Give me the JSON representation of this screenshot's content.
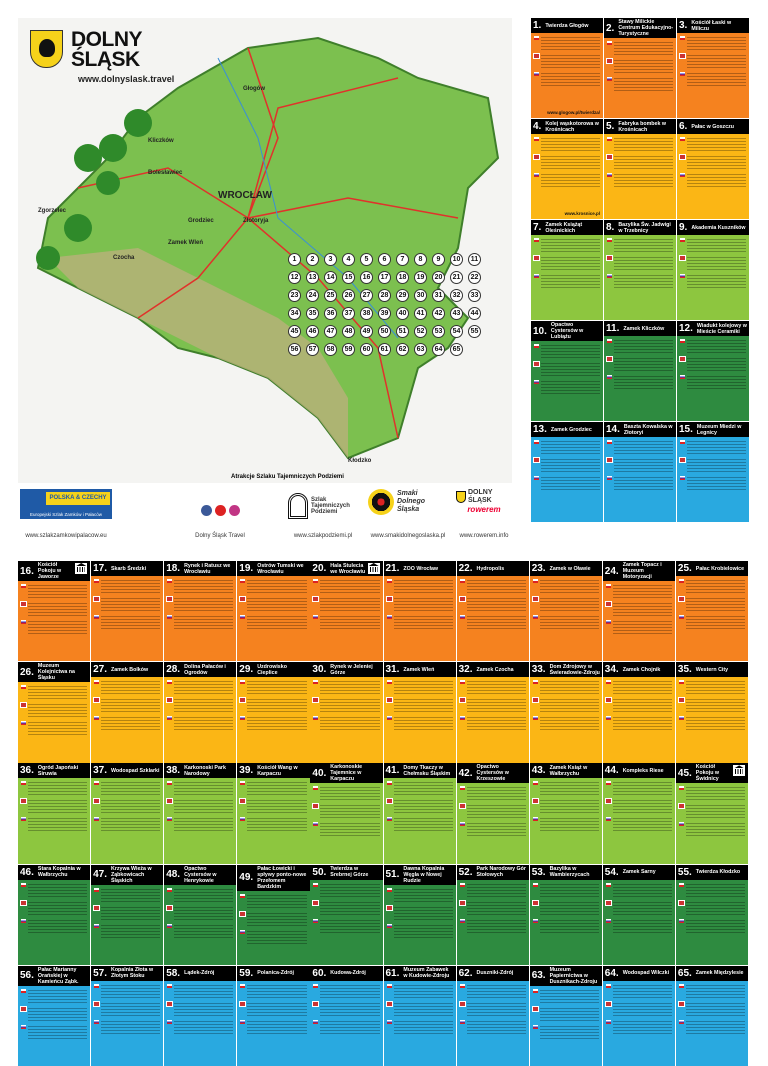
{
  "brand": {
    "title": "DOLNY ŚLĄSK",
    "url": "www.dolnyslask.travel"
  },
  "map": {
    "cities": [
      "Głogów",
      "Kliczków",
      "Bolesławiec",
      "Grodziec",
      "Złotoryja",
      "Zgorzelec",
      "Czocha",
      "Zamek Wleń",
      "WROCŁAW",
      "Kłodzko"
    ],
    "markers": [
      "1",
      "2",
      "3",
      "4",
      "5",
      "6",
      "7",
      "8",
      "9",
      "10",
      "11",
      "12",
      "13",
      "14",
      "15",
      "16",
      "17",
      "18",
      "19",
      "20",
      "21",
      "22",
      "23",
      "24",
      "25",
      "26",
      "27",
      "28",
      "29",
      "30",
      "31",
      "32",
      "33",
      "34",
      "35",
      "36",
      "37",
      "38",
      "39",
      "40",
      "41",
      "42",
      "43",
      "44",
      "45",
      "46",
      "47",
      "48",
      "49",
      "50",
      "51",
      "52",
      "53",
      "54",
      "55",
      "56",
      "57",
      "58",
      "59",
      "60",
      "61",
      "62",
      "63",
      "64",
      "65"
    ],
    "legend_title": "Atrakcje Szlaku Tajemniczych Podziemi",
    "colors": {
      "land": "#7cc04f",
      "mountains": "#b9b07a",
      "roads": "#e0322b",
      "rivers": "#3a8fd6"
    }
  },
  "footer": {
    "castles": {
      "label": "POLSKA & CZECHY",
      "sub": "Europejski Szlak Zamków i Pałaców",
      "url": "www.szlakzamkowipalacow.eu"
    },
    "social": {
      "label": "Dolny Śląsk Travel",
      "icons": [
        "facebook-icon",
        "youtube-icon",
        "instagram-icon"
      ]
    },
    "underground": {
      "label": "Szlak Tajemniczych Podziemi",
      "url": "www.szlakpodziemi.pl"
    },
    "taste": {
      "label": "Smaki Dolnego Śląska",
      "url": "www.smakidolnegoslaska.pl"
    },
    "bike": {
      "label": "DOLNY ŚLĄSK",
      "sub": "rowerem",
      "url": "www.rowerem.info"
    }
  },
  "row_colors": [
    "#f5821f",
    "#fbb615",
    "#8dc63f",
    "#2e8b40",
    "#29a9e0"
  ],
  "top_attractions": [
    {
      "num": "1.",
      "title": "Twierdza Głogów",
      "url": "www.glogow.pl/twierdza/"
    },
    {
      "num": "2.",
      "title": "Stawy Milickie Centrum Edukacyjno-Turystyczne"
    },
    {
      "num": "3.",
      "title": "Kościół Łaski w Miliczu"
    },
    {
      "num": "4.",
      "title": "Kolej wąskotorowa w Krośnicach",
      "url": "www.krosnice.pl"
    },
    {
      "num": "5.",
      "title": "Fabryka bombek w Krośnicach"
    },
    {
      "num": "6.",
      "title": "Pałac w Goszczu"
    },
    {
      "num": "7.",
      "title": "Zamek Książąt Oleśnickich"
    },
    {
      "num": "8.",
      "title": "Bazylika Św. Jadwigi w Trzebnicy"
    },
    {
      "num": "9.",
      "title": "Akademia Kuszników"
    },
    {
      "num": "10.",
      "title": "Opactwo Cystersów w Lubiążu"
    },
    {
      "num": "11.",
      "title": "Zamek Kliczków"
    },
    {
      "num": "12.",
      "title": "Wiadukt kolejowy w Mieście Ceramiki"
    },
    {
      "num": "13.",
      "title": "Zamek Grodziec"
    },
    {
      "num": "14.",
      "title": "Baszta Kowalska w Złotoryi"
    },
    {
      "num": "15.",
      "title": "Muzeum Miedzi w Legnicy"
    }
  ],
  "bottom_attractions": [
    {
      "num": "16.",
      "title": "Kościół Pokoju w Jaworze",
      "icon": true
    },
    {
      "num": "17.",
      "title": "Skarb Średzki"
    },
    {
      "num": "18.",
      "title": "Rynek i Ratusz we Wrocławiu"
    },
    {
      "num": "19.",
      "title": "Ostrów Tumski we Wrocławiu"
    },
    {
      "num": "20.",
      "title": "Hala Stulecia we Wrocławiu",
      "icon": true
    },
    {
      "num": "21.",
      "title": "ZOO Wrocław"
    },
    {
      "num": "22.",
      "title": "Hydropolis"
    },
    {
      "num": "23.",
      "title": "Zamek w Oławie"
    },
    {
      "num": "24.",
      "title": "Zamek Topacz i Muzeum Motoryzacji"
    },
    {
      "num": "25.",
      "title": "Pałac Krobielowice"
    },
    {
      "num": "26.",
      "title": "Muzeum Kolejnictwa na Śląsku"
    },
    {
      "num": "27.",
      "title": "Zamek Bolków"
    },
    {
      "num": "28.",
      "title": "Dolina Pałaców i Ogrodów"
    },
    {
      "num": "29.",
      "title": "Uzdrowisko Cieplice"
    },
    {
      "num": "30.",
      "title": "Rynek w Jeleniej Górze"
    },
    {
      "num": "31.",
      "title": "Zamek Wleń"
    },
    {
      "num": "32.",
      "title": "Zamek Czocha"
    },
    {
      "num": "33.",
      "title": "Dom Zdrojowy w Świeradowie-Zdroju"
    },
    {
      "num": "34.",
      "title": "Zamek Chojnik"
    },
    {
      "num": "35.",
      "title": "Western City"
    },
    {
      "num": "36.",
      "title": "Ogród Japoński Siruwia"
    },
    {
      "num": "37.",
      "title": "Wodospad Szklarki"
    },
    {
      "num": "38.",
      "title": "Karkonoski Park Narodowy"
    },
    {
      "num": "39.",
      "title": "Kościół Wang w Karpaczu"
    },
    {
      "num": "40.",
      "title": "Karkonoskie Tajemnice w Karpaczu"
    },
    {
      "num": "41.",
      "title": "Domy Tkaczy w Chełmsku Śląskim"
    },
    {
      "num": "42.",
      "title": "Opactwo Cystersów w Krzeszowie"
    },
    {
      "num": "43.",
      "title": "Zamek Książ w Wałbrzychu"
    },
    {
      "num": "44.",
      "title": "Kompleks Riese"
    },
    {
      "num": "45.",
      "title": "Kościół Pokoju w Świdnicy",
      "icon": true
    },
    {
      "num": "46.",
      "title": "Stara Kopalnia w Wałbrzychu"
    },
    {
      "num": "47.",
      "title": "Krzywa Wieża w Ząbkowicach Śląskich"
    },
    {
      "num": "48.",
      "title": "Opactwo Cystersów w Henrykowie"
    },
    {
      "num": "49.",
      "title": "Pałac Łowicki i spływy ponto-nowe Przełomem Bardzkim"
    },
    {
      "num": "50.",
      "title": "Twierdza w Srebrnej Górze"
    },
    {
      "num": "51.",
      "title": "Dawna Kopalnia Węgla w Nowej Rudzie"
    },
    {
      "num": "52.",
      "title": "Park Narodowy Gór Stołowych"
    },
    {
      "num": "53.",
      "title": "Bazylika w Wambierzycach"
    },
    {
      "num": "54.",
      "title": "Zamek Sarny"
    },
    {
      "num": "55.",
      "title": "Twierdza Kłodzko"
    },
    {
      "num": "56.",
      "title": "Pałac Marianny Orańskiej w Kamieńcu Ząbk."
    },
    {
      "num": "57.",
      "title": "Kopalnia Złota w Złotym Stoku"
    },
    {
      "num": "58.",
      "title": "Lądek-Zdrój"
    },
    {
      "num": "59.",
      "title": "Polanica-Zdrój"
    },
    {
      "num": "60.",
      "title": "Kudowa-Zdrój"
    },
    {
      "num": "61.",
      "title": "Muzeum Zabawek w Kudowie-Zdroju"
    },
    {
      "num": "62.",
      "title": "Duszniki-Zdrój"
    },
    {
      "num": "63.",
      "title": "Muzeum Papiernictwa w Dusznikach-Zdroju"
    },
    {
      "num": "64.",
      "title": "Wodospad Wilczki"
    },
    {
      "num": "65.",
      "title": "Zamek Międzylesie"
    }
  ]
}
